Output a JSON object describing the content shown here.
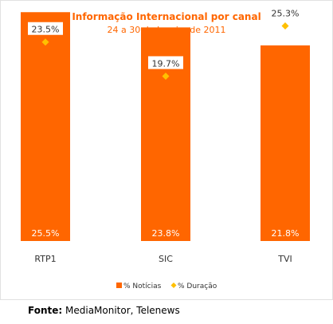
{
  "chart_data": {
    "type": "bar",
    "title": "Informação Internacional por canal",
    "subtitle": "24 a 30 de Janeiro de 2011",
    "categories": [
      "RTP1",
      "SIC",
      "TVI"
    ],
    "series": [
      {
        "name": "% Notícias",
        "kind": "bar",
        "color": "#ff6600",
        "values": [
          25.5,
          23.8,
          21.8
        ],
        "labels": [
          "25.5%",
          "23.8%",
          "21.8%"
        ]
      },
      {
        "name": "% Duração",
        "kind": "marker",
        "color": "#ffc000",
        "values": [
          23.5,
          19.7,
          25.3
        ],
        "labels": [
          "23.5%",
          "19.7%",
          "25.3%"
        ]
      }
    ],
    "ylim": [
      0,
      26.5
    ],
    "grid": false,
    "legend_position": "bottom"
  },
  "footer": {
    "source_label": "Fonte:",
    "source_value": "MediaMonitor, Telenews"
  }
}
